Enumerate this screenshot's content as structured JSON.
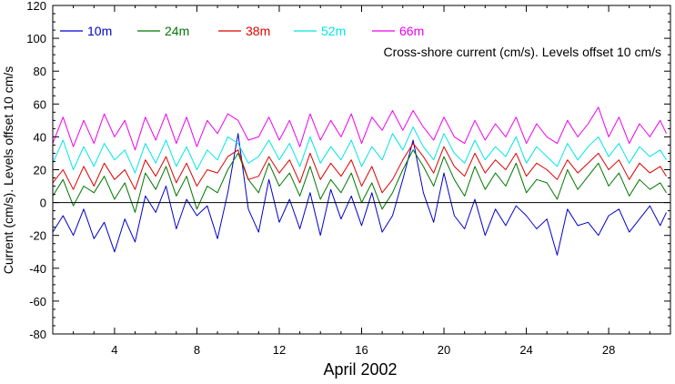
{
  "chart_data": {
    "type": "line",
    "xlabel": "April 2002",
    "ylabel": "Current (cm/s). Levels offset 10 cm/s",
    "annotation": "Cross-shore current (cm/s). Levels offset 10 cm/s",
    "xlim": [
      1,
      31
    ],
    "ylim": [
      -80,
      120
    ],
    "x_ticks": [
      4,
      8,
      12,
      16,
      20,
      24,
      28
    ],
    "y_ticks": [
      -80,
      -60,
      -40,
      -20,
      0,
      20,
      40,
      60,
      80,
      100,
      120
    ],
    "zero_line": 0,
    "grid": false,
    "legend_position": "top-left",
    "series": [
      {
        "name": "10m",
        "color": "#0000cc",
        "x": [
          1.0,
          1.5,
          2.0,
          2.5,
          3.0,
          3.5,
          4.0,
          4.5,
          5.0,
          5.5,
          6.0,
          6.5,
          7.0,
          7.5,
          8.0,
          8.5,
          9.0,
          9.5,
          10.0,
          10.5,
          11.0,
          11.5,
          12.0,
          12.5,
          13.0,
          13.5,
          14.0,
          14.5,
          15.0,
          15.5,
          16.0,
          16.5,
          17.0,
          17.5,
          18.0,
          18.5,
          19.0,
          19.5,
          20.0,
          20.5,
          21.0,
          21.5,
          22.0,
          22.5,
          23.0,
          23.5,
          24.0,
          24.5,
          25.0,
          25.5,
          26.0,
          26.5,
          27.0,
          27.5,
          28.0,
          28.5,
          29.0,
          29.5,
          30.0,
          30.5,
          30.8
        ],
        "y": [
          -18,
          -8,
          -20,
          -4,
          -22,
          -12,
          -30,
          -10,
          -24,
          4,
          -6,
          10,
          -16,
          2,
          -8,
          -2,
          -22,
          6,
          42,
          -4,
          -18,
          14,
          -12,
          2,
          -16,
          6,
          -20,
          8,
          -10,
          4,
          -14,
          6,
          -18,
          -8,
          14,
          38,
          6,
          -12,
          18,
          -8,
          -16,
          2,
          -20,
          -4,
          -14,
          -2,
          -8,
          -16,
          -10,
          -32,
          -4,
          -14,
          -12,
          -20,
          -8,
          -4,
          -18,
          -10,
          -2,
          -14,
          -6
        ]
      },
      {
        "name": "24m",
        "color": "#007700",
        "x": [
          1.0,
          1.5,
          2.0,
          2.5,
          3.0,
          3.5,
          4.0,
          4.5,
          5.0,
          5.5,
          6.0,
          6.5,
          7.0,
          7.5,
          8.0,
          8.5,
          9.0,
          9.5,
          10.0,
          10.5,
          11.0,
          11.5,
          12.0,
          12.5,
          13.0,
          13.5,
          14.0,
          14.5,
          15.0,
          15.5,
          16.0,
          16.5,
          17.0,
          17.5,
          18.0,
          18.5,
          19.0,
          19.5,
          20.0,
          20.5,
          21.0,
          21.5,
          22.0,
          22.5,
          23.0,
          23.5,
          24.0,
          24.5,
          25.0,
          25.5,
          26.0,
          26.5,
          27.0,
          27.5,
          28.0,
          28.5,
          29.0,
          29.5,
          30.0,
          30.5,
          30.8
        ],
        "y": [
          4,
          14,
          -2,
          10,
          6,
          16,
          2,
          12,
          -6,
          18,
          8,
          22,
          4,
          16,
          -4,
          10,
          6,
          20,
          30,
          14,
          6,
          24,
          10,
          18,
          4,
          22,
          2,
          14,
          6,
          18,
          0,
          12,
          -4,
          6,
          20,
          32,
          22,
          10,
          28,
          14,
          4,
          22,
          8,
          18,
          10,
          24,
          6,
          14,
          12,
          2,
          20,
          8,
          16,
          24,
          10,
          18,
          4,
          14,
          8,
          12,
          6
        ]
      },
      {
        "name": "38m",
        "color": "#dd0000",
        "x": [
          1.0,
          1.5,
          2.0,
          2.5,
          3.0,
          3.5,
          4.0,
          4.5,
          5.0,
          5.5,
          6.0,
          6.5,
          7.0,
          7.5,
          8.0,
          8.5,
          9.0,
          9.5,
          10.0,
          10.5,
          11.0,
          11.5,
          12.0,
          12.5,
          13.0,
          13.5,
          14.0,
          14.5,
          15.0,
          15.5,
          16.0,
          16.5,
          17.0,
          17.5,
          18.0,
          18.5,
          19.0,
          19.5,
          20.0,
          20.5,
          21.0,
          21.5,
          22.0,
          22.5,
          23.0,
          23.5,
          24.0,
          24.5,
          25.0,
          25.5,
          26.0,
          26.5,
          27.0,
          27.5,
          28.0,
          28.5,
          29.0,
          29.5,
          30.0,
          30.5,
          30.8
        ],
        "y": [
          12,
          20,
          8,
          22,
          10,
          24,
          14,
          20,
          8,
          26,
          16,
          28,
          12,
          24,
          10,
          20,
          18,
          28,
          32,
          14,
          16,
          28,
          18,
          26,
          12,
          30,
          14,
          24,
          16,
          26,
          10,
          22,
          6,
          14,
          26,
          36,
          28,
          18,
          34,
          22,
          16,
          30,
          18,
          26,
          20,
          30,
          16,
          24,
          20,
          14,
          26,
          18,
          24,
          30,
          20,
          26,
          14,
          24,
          18,
          22,
          16
        ]
      },
      {
        "name": "52m",
        "color": "#00e5e5",
        "x": [
          1.0,
          1.5,
          2.0,
          2.5,
          3.0,
          3.5,
          4.0,
          4.5,
          5.0,
          5.5,
          6.0,
          6.5,
          7.0,
          7.5,
          8.0,
          8.5,
          9.0,
          9.5,
          10.0,
          10.5,
          11.0,
          11.5,
          12.0,
          12.5,
          13.0,
          13.5,
          14.0,
          14.5,
          15.0,
          15.5,
          16.0,
          16.5,
          17.0,
          17.5,
          18.0,
          18.5,
          19.0,
          19.5,
          20.0,
          20.5,
          21.0,
          21.5,
          22.0,
          22.5,
          23.0,
          23.5,
          24.0,
          24.5,
          25.0,
          25.5,
          26.0,
          26.5,
          27.0,
          27.5,
          28.0,
          28.5,
          29.0,
          29.5,
          30.0,
          30.5,
          30.8
        ],
        "y": [
          24,
          38,
          20,
          34,
          22,
          36,
          26,
          32,
          18,
          36,
          24,
          38,
          22,
          34,
          20,
          32,
          26,
          40,
          36,
          24,
          28,
          38,
          26,
          36,
          22,
          40,
          24,
          34,
          26,
          38,
          22,
          34,
          26,
          42,
          32,
          46,
          34,
          26,
          42,
          30,
          24,
          38,
          26,
          34,
          28,
          40,
          24,
          34,
          28,
          22,
          36,
          26,
          34,
          40,
          28,
          36,
          24,
          34,
          28,
          32,
          26
        ]
      },
      {
        "name": "66m",
        "color": "#ee00ee",
        "x": [
          1.0,
          1.5,
          2.0,
          2.5,
          3.0,
          3.5,
          4.0,
          4.5,
          5.0,
          5.5,
          6.0,
          6.5,
          7.0,
          7.5,
          8.0,
          8.5,
          9.0,
          9.5,
          10.0,
          10.5,
          11.0,
          11.5,
          12.0,
          12.5,
          13.0,
          13.5,
          14.0,
          14.5,
          15.0,
          15.5,
          16.0,
          16.5,
          17.0,
          17.5,
          18.0,
          18.5,
          19.0,
          19.5,
          20.0,
          20.5,
          21.0,
          21.5,
          22.0,
          22.5,
          23.0,
          23.5,
          24.0,
          24.5,
          25.0,
          25.5,
          26.0,
          26.5,
          27.0,
          27.5,
          28.0,
          28.5,
          29.0,
          29.5,
          30.0,
          30.5,
          30.8
        ],
        "y": [
          36,
          52,
          34,
          50,
          36,
          54,
          40,
          50,
          32,
          52,
          38,
          54,
          36,
          52,
          34,
          50,
          42,
          54,
          50,
          38,
          40,
          52,
          38,
          50,
          34,
          54,
          38,
          50,
          40,
          54,
          36,
          52,
          44,
          56,
          44,
          56,
          46,
          38,
          52,
          40,
          36,
          50,
          38,
          48,
          40,
          52,
          36,
          48,
          40,
          36,
          50,
          40,
          48,
          58,
          40,
          52,
          36,
          48,
          40,
          50,
          42
        ]
      }
    ]
  }
}
